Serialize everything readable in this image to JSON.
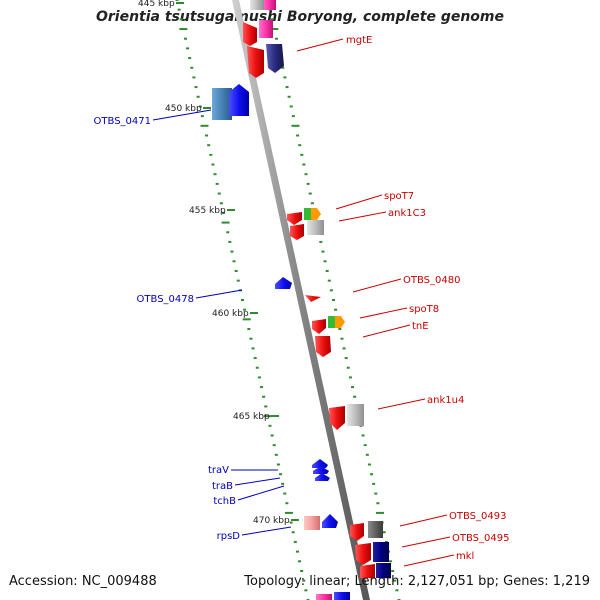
{
  "title": "Orientia tsutsugamushi Boryong, complete genome",
  "footer": {
    "accession": "Accession: NC_009488",
    "topology": "Topology: linear; Length: 2,127,051 bp; Genes: 1,219"
  },
  "colors": {
    "backbone": "#7f7f7f",
    "tick": "#2e8b2e",
    "forward_label": "#cc0000",
    "reverse_label": "#0000bb",
    "gene_red": "#ee1111",
    "gene_blue": "#1010ee",
    "gene_navy": "#2a2a80",
    "gene_steelblue": "#4682b4",
    "gene_grey": "#b8b8b8",
    "gene_darkgrey": "#606060",
    "gene_green": "#33bb33",
    "gene_orange": "#ff9900",
    "gene_pink": "#f4a0a0",
    "gene_magenta": "#ff33aa"
  },
  "scale_labels": [
    {
      "id": "tick-445",
      "text": "445 kbp",
      "kb": 445
    },
    {
      "id": "tick-450",
      "text": "450 kbp",
      "kb": 450
    },
    {
      "id": "tick-455",
      "text": "455 kbp",
      "kb": 455
    },
    {
      "id": "tick-460",
      "text": "460 kbp",
      "kb": 460
    },
    {
      "id": "tick-465",
      "text": "465 kbp",
      "kb": 465
    },
    {
      "id": "tick-470",
      "text": "470 kbp",
      "kb": 470
    }
  ],
  "gene_labels": [
    {
      "id": "mgtE",
      "text": "mgtE",
      "strand": "forward"
    },
    {
      "id": "OTBS_0471",
      "text": "OTBS_0471",
      "strand": "reverse"
    },
    {
      "id": "spoT7",
      "text": "spoT7",
      "strand": "forward"
    },
    {
      "id": "ank1C3",
      "text": "ank1C3",
      "strand": "forward"
    },
    {
      "id": "OTBS_0480",
      "text": "OTBS_0480",
      "strand": "forward"
    },
    {
      "id": "OTBS_0478",
      "text": "OTBS_0478",
      "strand": "reverse"
    },
    {
      "id": "spoT8",
      "text": "spoT8",
      "strand": "forward"
    },
    {
      "id": "tnE",
      "text": "tnE",
      "strand": "forward"
    },
    {
      "id": "ank1u4",
      "text": "ank1u4",
      "strand": "forward"
    },
    {
      "id": "traV",
      "text": "traV",
      "strand": "reverse"
    },
    {
      "id": "traB",
      "text": "traB",
      "strand": "reverse"
    },
    {
      "id": "tchB",
      "text": "tchB",
      "strand": "reverse"
    },
    {
      "id": "rpsD",
      "text": "rpsD",
      "strand": "reverse"
    },
    {
      "id": "OTBS_0493",
      "text": "OTBS_0493",
      "strand": "forward"
    },
    {
      "id": "OTBS_0495",
      "text": "OTBS_0495",
      "strand": "forward"
    },
    {
      "id": "mkl",
      "text": "mkl",
      "strand": "forward"
    }
  ]
}
